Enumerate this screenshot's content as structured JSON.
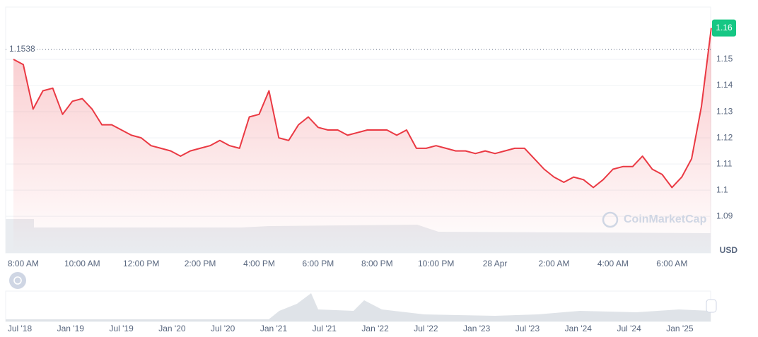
{
  "chart_data": {
    "type": "line",
    "categories": [
      null,
      "8:00 AM",
      null,
      null,
      null,
      null,
      null,
      "10:00 AM",
      null,
      null,
      null,
      null,
      null,
      "12:00 PM",
      null,
      null,
      null,
      null,
      null,
      "2:00 PM",
      null,
      null,
      null,
      null,
      null,
      "4:00 PM",
      null,
      null,
      null,
      null,
      null,
      "6:00 PM",
      null,
      null,
      null,
      null,
      null,
      "8:00 PM",
      null,
      null,
      null,
      null,
      null,
      "10:00 PM",
      null,
      null,
      null,
      null,
      null,
      "28 Apr",
      null,
      null,
      null,
      null,
      null,
      "2:00 AM",
      null,
      null,
      null,
      null,
      null,
      "4:00 AM",
      null,
      null,
      null,
      null,
      null,
      "6:00 AM",
      null,
      null,
      null,
      null
    ],
    "series": [
      {
        "color": "#ea3943",
        "values": [
          1.15,
          1.148,
          1.131,
          1.138,
          1.139,
          1.129,
          1.134,
          1.135,
          1.131,
          1.125,
          1.125,
          1.123,
          1.121,
          1.12,
          1.117,
          1.116,
          1.115,
          1.113,
          1.115,
          1.116,
          1.117,
          1.119,
          1.117,
          1.116,
          1.128,
          1.129,
          1.138,
          1.12,
          1.119,
          1.125,
          1.128,
          1.124,
          1.123,
          1.123,
          1.121,
          1.122,
          1.123,
          1.123,
          1.123,
          1.121,
          1.123,
          1.116,
          1.116,
          1.117,
          1.116,
          1.115,
          1.115,
          1.114,
          1.115,
          1.114,
          1.115,
          1.116,
          1.116,
          1.112,
          1.108,
          1.105,
          1.103,
          1.105,
          1.104,
          1.101,
          1.104,
          1.108,
          1.109,
          1.109,
          1.113,
          1.108,
          1.106,
          1.101,
          1.105,
          1.112,
          1.132,
          1.162
        ]
      }
    ],
    "ylim": [
      1.076,
      1.17
    ],
    "yticks": [
      1.09,
      1.1,
      1.11,
      1.12,
      1.13,
      1.14,
      1.15
    ],
    "y_axis_position": "right",
    "grid": true,
    "reference_line": 1.1538,
    "price_badge": "1.16",
    "price_badge_color": "#16c784",
    "unit_label": "USD",
    "watermark": "CoinMarketCap",
    "navigator_labels": [
      "Jul '18",
      "Jan '19",
      "Jul '19",
      "Jan '20",
      "Jul '20",
      "Jan '21",
      "Jul '21",
      "Jan '22",
      "Jul '22",
      "Jan '23",
      "Jul '23",
      "Jan '24",
      "Jul '24",
      "Jan '25"
    ]
  }
}
